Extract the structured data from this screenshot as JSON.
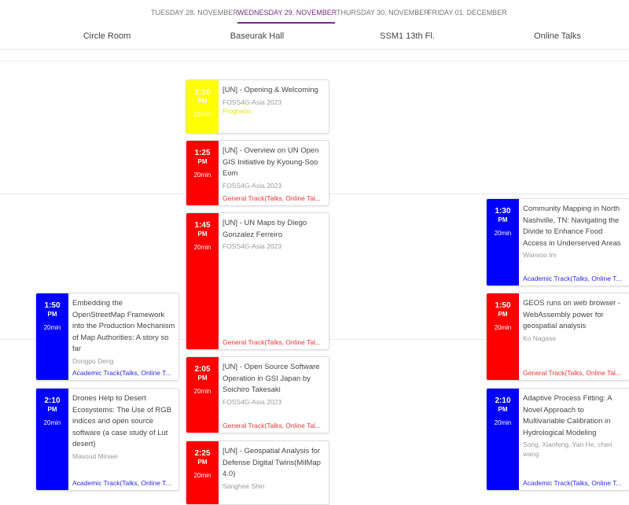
{
  "days": [
    "TUESDAY 28. NOVEMBER",
    "WEDNESDAY 29. NOVEMBER",
    "THURSDAY 30. NOVEMBER",
    "FRIDAY 01. DECEMBER"
  ],
  "active_day": "WEDNESDAY 29. NOVEMBER",
  "rooms": [
    "Circle Room",
    "Baseurak Hall",
    "SSM1 13th Fl.",
    "Online Talks"
  ],
  "colors": {
    "accent": "#7a2d88",
    "yellow": "#ffff00",
    "red": "#ff0000",
    "blue": "#0000ff"
  },
  "sessions": [
    {
      "time": "1:10",
      "ampm": "PM",
      "dur": "15min",
      "title": "[UN] - Opening & Welcoming",
      "speaker": "FOSS4G-Asia 2023",
      "track": "Programs",
      "color": "yellow"
    },
    {
      "time": "1:25",
      "ampm": "PM",
      "dur": "20min",
      "title": "[UN] - Overview on UN Open GIS Initiative by Kyoung-Soo Eom",
      "speaker": "FOSS4G-Asia 2023",
      "track": "General Track(Talks, Online Tal...",
      "color": "red"
    },
    {
      "time": "1:45",
      "ampm": "PM",
      "dur": "20min",
      "title": "[UN] - UN Maps by Diego Gonzalez Ferreiro",
      "speaker": "FOSS4G-Asia 2023",
      "track": "General Track(Talks, Online Tal...",
      "color": "red"
    },
    {
      "time": "2:05",
      "ampm": "PM",
      "dur": "20min",
      "title": "[UN] - Open Source Software Operation in GSI Japan by Soichiro Takesaki",
      "speaker": "FOSS4G-Asia 2023",
      "track": "General Track(Talks, Online Tal...",
      "color": "red"
    },
    {
      "time": "2:25",
      "ampm": "PM",
      "dur": "20min",
      "title": "[UN] - Geospatial Analysis for Defense Digital Twins(MilMap 4.0)",
      "speaker": "Sanghee Shin",
      "track": "",
      "color": "red"
    },
    {
      "time": "1:50",
      "ampm": "PM",
      "dur": "20min",
      "title": "Embedding the OpenStreetMap Framework into the Production Mechanism of Map Authorities: A story so far",
      "speaker": "Dongpo Deng",
      "track": "Academic Track(Talks, Online T...",
      "color": "blue"
    },
    {
      "time": "2:10",
      "ampm": "PM",
      "dur": "20min",
      "title": "Drones Help to Desert Ecosystems: The Use of RGB indices and open source software (a case study of Lut desert)",
      "speaker": "Masoud Minaei",
      "track": "Academic Track(Talks, Online T...",
      "color": "blue"
    },
    {
      "time": "1:30",
      "ampm": "PM",
      "dur": "20min",
      "title": "Community Mapping in North Nashville, TN: Navigating the Divide to Enhance Food Access in Underserved Areas",
      "speaker": "Wansoo Im",
      "track": "Academic Track(Talks, Online T...",
      "color": "blue"
    },
    {
      "time": "1:50",
      "ampm": "PM",
      "dur": "20min",
      "title": "GEOS runs on web browser - WebAssembly power for geospatial analysis",
      "speaker": "Ko Nagase",
      "track": "General Track(Talks, Online Tal...",
      "color": "red"
    },
    {
      "time": "2:10",
      "ampm": "PM",
      "dur": "20min",
      "title": "Adaptive Process Fitting: A Novel Approach to Multivariable Calibration in Hydrological Modeling",
      "speaker": "Song, Xianfeng, Yan He, chen wang",
      "track": "Academic Track(Talks, Online T...",
      "color": "blue"
    }
  ]
}
